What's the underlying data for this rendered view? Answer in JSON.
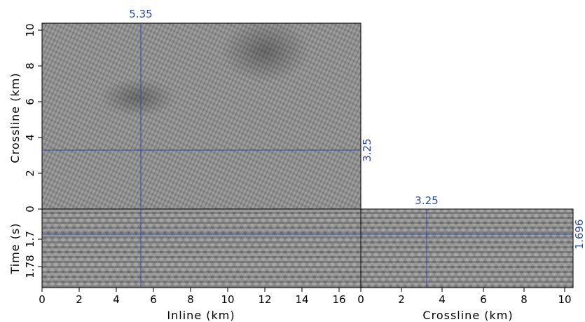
{
  "figure": {
    "inline_axis_title": "Inline (km)",
    "crossline_axis_title": "Crossline (km)",
    "time_axis_title": "Time (s)",
    "map_y_axis_title": "Crossline (km)",
    "inline_ticks": [
      "0",
      "2",
      "4",
      "6",
      "8",
      "10",
      "12",
      "14",
      "16"
    ],
    "crossline_bottom_ticks": [
      "0",
      "2",
      "4",
      "6",
      "8",
      "10"
    ],
    "crossline_left_ticks": [
      "0",
      "2",
      "4",
      "6",
      "8",
      "10"
    ],
    "time_ticks": [
      "1.7",
      "1.78"
    ],
    "cursors": {
      "inline_value_label": "5.35",
      "crossline_value_label_map": "3.25",
      "crossline_value_label_section": "3.25",
      "time_value_label": "1.696"
    },
    "colors": {
      "cursor": "#2e4aa0",
      "frame": "#000000"
    }
  }
}
